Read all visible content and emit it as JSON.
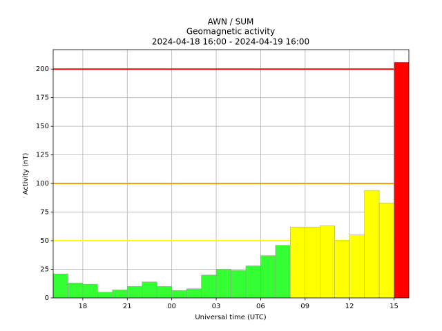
{
  "chart_data": {
    "type": "bar",
    "title": "AWN / SUM",
    "subtitle": "Geomagnetic activity",
    "period": "2024-04-18 16:00 - 2024-04-19 16:00",
    "xlabel": "Universal time (UTC)",
    "ylabel": "Activity (nT)",
    "x": [
      16,
      17,
      18,
      19,
      20,
      21,
      22,
      23,
      24,
      25,
      26,
      27,
      28,
      29,
      30,
      31,
      32,
      33,
      34,
      35,
      36,
      37,
      38,
      39
    ],
    "values": [
      21,
      13,
      12,
      5,
      7,
      10,
      14,
      10,
      6.5,
      8,
      20,
      25,
      24,
      28,
      37,
      46,
      62,
      62,
      63,
      50,
      55,
      94,
      83,
      206
    ],
    "colors": [
      "#33ff33",
      "#33ff33",
      "#33ff33",
      "#33ff33",
      "#33ff33",
      "#33ff33",
      "#33ff33",
      "#33ff33",
      "#33ff33",
      "#33ff33",
      "#33ff33",
      "#33ff33",
      "#33ff33",
      "#33ff33",
      "#33ff33",
      "#33ff33",
      "#ffff00",
      "#ffff00",
      "#ffff00",
      "#ffff00",
      "#ffff00",
      "#ffff00",
      "#ffff00",
      "#ff0000"
    ],
    "bar_width": 1,
    "thresholds": [
      {
        "value": 50,
        "color": "#ffff00"
      },
      {
        "value": 100,
        "color": "#ff9900"
      },
      {
        "value": 200,
        "color": "#ff0000"
      }
    ],
    "xlim": [
      16,
      40
    ],
    "ylim": [
      0,
      217
    ],
    "xticks": [
      18,
      21,
      {
        "value": 24,
        "label": "00"
      },
      {
        "value": 27,
        "label": "03"
      },
      {
        "value": 30,
        "label": "06"
      },
      {
        "value": 33,
        "label": "09"
      },
      {
        "value": 36,
        "label": "12"
      },
      {
        "value": 39,
        "label": "15"
      }
    ],
    "yticks": [
      0,
      25,
      50,
      75,
      100,
      125,
      150,
      175,
      200
    ],
    "grid": true
  }
}
